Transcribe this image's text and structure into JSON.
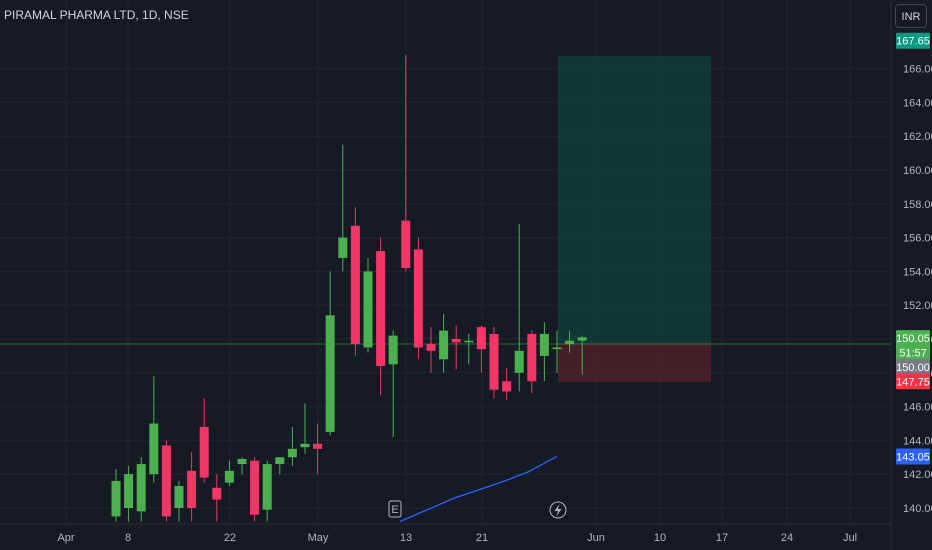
{
  "header": {
    "symbol_title": "PIRAMAL PHARMA LTD, 1D, NSE"
  },
  "currency_button": {
    "label": "INR"
  },
  "markers": {
    "earnings_label": "E",
    "dividend_icon": "lightning-icon"
  },
  "colors": {
    "up": "#4caf50",
    "down": "#f23665",
    "ma": "#2962ff",
    "profit_zone": "#0f3d3a",
    "loss_zone": "#4a2028",
    "background": "#161a25"
  },
  "price_tags": [
    {
      "label": "167.65",
      "color": "#089981",
      "value": 167.65
    },
    {
      "label": "150.05",
      "color": "#4caf50",
      "value": 150.05
    },
    {
      "label": "51:57",
      "color": "#4caf50",
      "value": 149.2
    },
    {
      "label": "150.00",
      "color": "#787b86",
      "value": 148.35
    },
    {
      "label": "147.75",
      "color": "#f23645",
      "value": 147.5
    },
    {
      "label": "143.05",
      "color": "#2962ff",
      "value": 143.05
    }
  ],
  "chart_data": {
    "type": "candlestick",
    "title": "PIRAMAL PHARMA LTD, 1D, NSE",
    "xlabel": "",
    "ylabel": "",
    "ylim": [
      139.2,
      168.5
    ],
    "y_ticks": [
      "140.00",
      "142.00",
      "144.00",
      "146.00",
      "148.00",
      "150.00",
      "152.00",
      "154.00",
      "156.00",
      "158.00",
      "160.00",
      "162.00",
      "164.00",
      "166.00"
    ],
    "x_ticks": [
      "Apr",
      "8",
      "22",
      "May",
      "13",
      "21",
      "Jun",
      "10",
      "17",
      "24",
      "Jul"
    ],
    "candles": [
      {
        "o": 139.5,
        "h": 142.3,
        "l": 139.2,
        "c": 141.6
      },
      {
        "o": 140.0,
        "h": 142.5,
        "l": 139.2,
        "c": 142.0
      },
      {
        "o": 139.8,
        "h": 143.0,
        "l": 139.2,
        "c": 142.6
      },
      {
        "o": 142.0,
        "h": 147.8,
        "l": 141.5,
        "c": 145.0
      },
      {
        "o": 143.7,
        "h": 144.0,
        "l": 139.2,
        "c": 139.5
      },
      {
        "o": 140.0,
        "h": 141.6,
        "l": 139.2,
        "c": 141.3
      },
      {
        "o": 142.2,
        "h": 143.3,
        "l": 139.2,
        "c": 140.0
      },
      {
        "o": 144.8,
        "h": 146.5,
        "l": 141.5,
        "c": 141.8
      },
      {
        "o": 141.2,
        "h": 142.0,
        "l": 139.2,
        "c": 140.5
      },
      {
        "o": 141.5,
        "h": 142.8,
        "l": 141.3,
        "c": 142.2
      },
      {
        "o": 142.6,
        "h": 143.0,
        "l": 142.0,
        "c": 142.9
      },
      {
        "o": 142.8,
        "h": 143.0,
        "l": 139.2,
        "c": 139.6
      },
      {
        "o": 139.9,
        "h": 142.8,
        "l": 139.2,
        "c": 142.6
      },
      {
        "o": 142.6,
        "h": 143.0,
        "l": 142.0,
        "c": 143.0
      },
      {
        "o": 143.0,
        "h": 144.8,
        "l": 142.5,
        "c": 143.5
      },
      {
        "o": 143.6,
        "h": 146.2,
        "l": 143.2,
        "c": 143.8
      },
      {
        "o": 143.8,
        "h": 145.0,
        "l": 142.0,
        "c": 143.5
      },
      {
        "o": 144.5,
        "h": 154.0,
        "l": 144.3,
        "c": 151.4
      },
      {
        "o": 154.8,
        "h": 161.5,
        "l": 154.0,
        "c": 156.0
      },
      {
        "o": 156.7,
        "h": 157.8,
        "l": 149.0,
        "c": 149.7
      },
      {
        "o": 149.5,
        "h": 154.8,
        "l": 149.2,
        "c": 154.0
      },
      {
        "o": 155.2,
        "h": 156.0,
        "l": 146.7,
        "c": 148.4
      },
      {
        "o": 148.5,
        "h": 150.5,
        "l": 144.2,
        "c": 150.2
      },
      {
        "o": 157.0,
        "h": 166.8,
        "l": 154.0,
        "c": 154.2
      },
      {
        "o": 155.3,
        "h": 156.0,
        "l": 148.8,
        "c": 149.5
      },
      {
        "o": 149.7,
        "h": 150.7,
        "l": 148.0,
        "c": 149.3
      },
      {
        "o": 148.8,
        "h": 151.5,
        "l": 148.0,
        "c": 150.5
      },
      {
        "o": 150.0,
        "h": 150.8,
        "l": 148.2,
        "c": 149.8
      },
      {
        "o": 149.8,
        "h": 150.3,
        "l": 148.5,
        "c": 149.9
      },
      {
        "o": 150.7,
        "h": 150.8,
        "l": 148.0,
        "c": 149.4
      },
      {
        "o": 150.3,
        "h": 150.7,
        "l": 146.5,
        "c": 147.0
      },
      {
        "o": 147.5,
        "h": 148.3,
        "l": 146.4,
        "c": 146.9
      },
      {
        "o": 148.0,
        "h": 156.8,
        "l": 146.9,
        "c": 149.3
      },
      {
        "o": 150.3,
        "h": 150.5,
        "l": 146.8,
        "c": 147.5
      },
      {
        "o": 149.0,
        "h": 151.0,
        "l": 147.5,
        "c": 150.3
      },
      {
        "o": 149.4,
        "h": 150.5,
        "l": 148.0,
        "c": 149.5
      },
      {
        "o": 149.7,
        "h": 150.5,
        "l": 149.2,
        "c": 149.9
      },
      {
        "o": 149.9,
        "h": 150.2,
        "l": 147.9,
        "c": 150.1
      }
    ],
    "moving_average": [
      {
        "x": "2024-05-13",
        "y": 139.2
      },
      {
        "x": "2024-05-17",
        "y": 140.6
      },
      {
        "x": "2024-05-21",
        "y": 141.5
      },
      {
        "x": "2024-05-24",
        "y": 142.1
      },
      {
        "x": "2024-05-29",
        "y": 143.05
      }
    ],
    "position": {
      "entry": 150.05,
      "target": 167.65,
      "stop": 147.75
    },
    "current_price": 150.05
  }
}
